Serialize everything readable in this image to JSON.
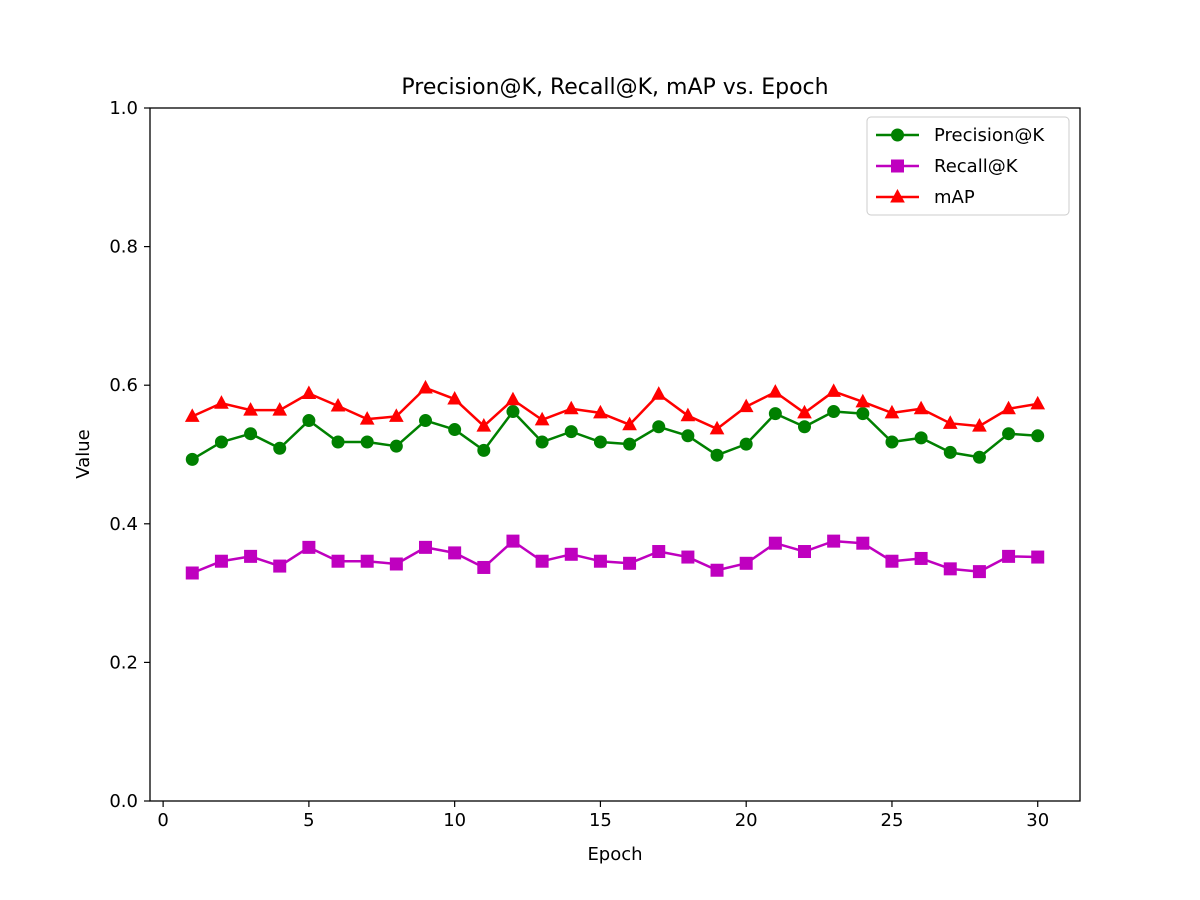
{
  "chart_data": {
    "type": "line",
    "title": "Precision@K, Recall@K, mAP vs. Epoch",
    "xlabel": "Epoch",
    "ylabel": "Value",
    "xlim": [
      -0.45,
      31.45
    ],
    "ylim": [
      0,
      1
    ],
    "xticks": [
      0,
      5,
      10,
      15,
      20,
      25,
      30
    ],
    "xtick_labels": [
      "0",
      "5",
      "10",
      "15",
      "20",
      "25",
      "30"
    ],
    "yticks": [
      0,
      0.2,
      0.4,
      0.6,
      0.8,
      1.0
    ],
    "ytick_labels": [
      "0.0",
      "0.2",
      "0.4",
      "0.6",
      "0.8",
      "1.0"
    ],
    "grid": false,
    "legend_position": "top-right",
    "x": [
      1,
      2,
      3,
      4,
      5,
      6,
      7,
      8,
      9,
      10,
      11,
      12,
      13,
      14,
      15,
      16,
      17,
      18,
      19,
      20,
      21,
      22,
      23,
      24,
      25,
      26,
      27,
      28,
      29,
      30
    ],
    "series": [
      {
        "name": "Precision@K",
        "color": "#008000",
        "marker": "circle",
        "values": [
          0.493,
          0.518,
          0.53,
          0.509,
          0.549,
          0.518,
          0.518,
          0.512,
          0.549,
          0.536,
          0.506,
          0.562,
          0.518,
          0.533,
          0.518,
          0.515,
          0.54,
          0.527,
          0.499,
          0.515,
          0.559,
          0.54,
          0.562,
          0.559,
          0.518,
          0.524,
          0.503,
          0.496,
          0.53,
          0.527
        ]
      },
      {
        "name": "Recall@K",
        "color": "#bf00bf",
        "marker": "square",
        "values": [
          0.329,
          0.346,
          0.353,
          0.339,
          0.366,
          0.346,
          0.346,
          0.342,
          0.366,
          0.358,
          0.337,
          0.375,
          0.346,
          0.356,
          0.346,
          0.343,
          0.36,
          0.352,
          0.333,
          0.343,
          0.372,
          0.36,
          0.375,
          0.372,
          0.346,
          0.35,
          0.335,
          0.331,
          0.353,
          0.352
        ]
      },
      {
        "name": "mAP",
        "color": "#ff0000",
        "marker": "triangle",
        "values": [
          0.555,
          0.574,
          0.564,
          0.564,
          0.588,
          0.57,
          0.551,
          0.555,
          0.596,
          0.58,
          0.541,
          0.579,
          0.55,
          0.566,
          0.56,
          0.543,
          0.587,
          0.556,
          0.537,
          0.569,
          0.59,
          0.56,
          0.591,
          0.576,
          0.56,
          0.566,
          0.545,
          0.541,
          0.566,
          0.573
        ]
      }
    ]
  }
}
